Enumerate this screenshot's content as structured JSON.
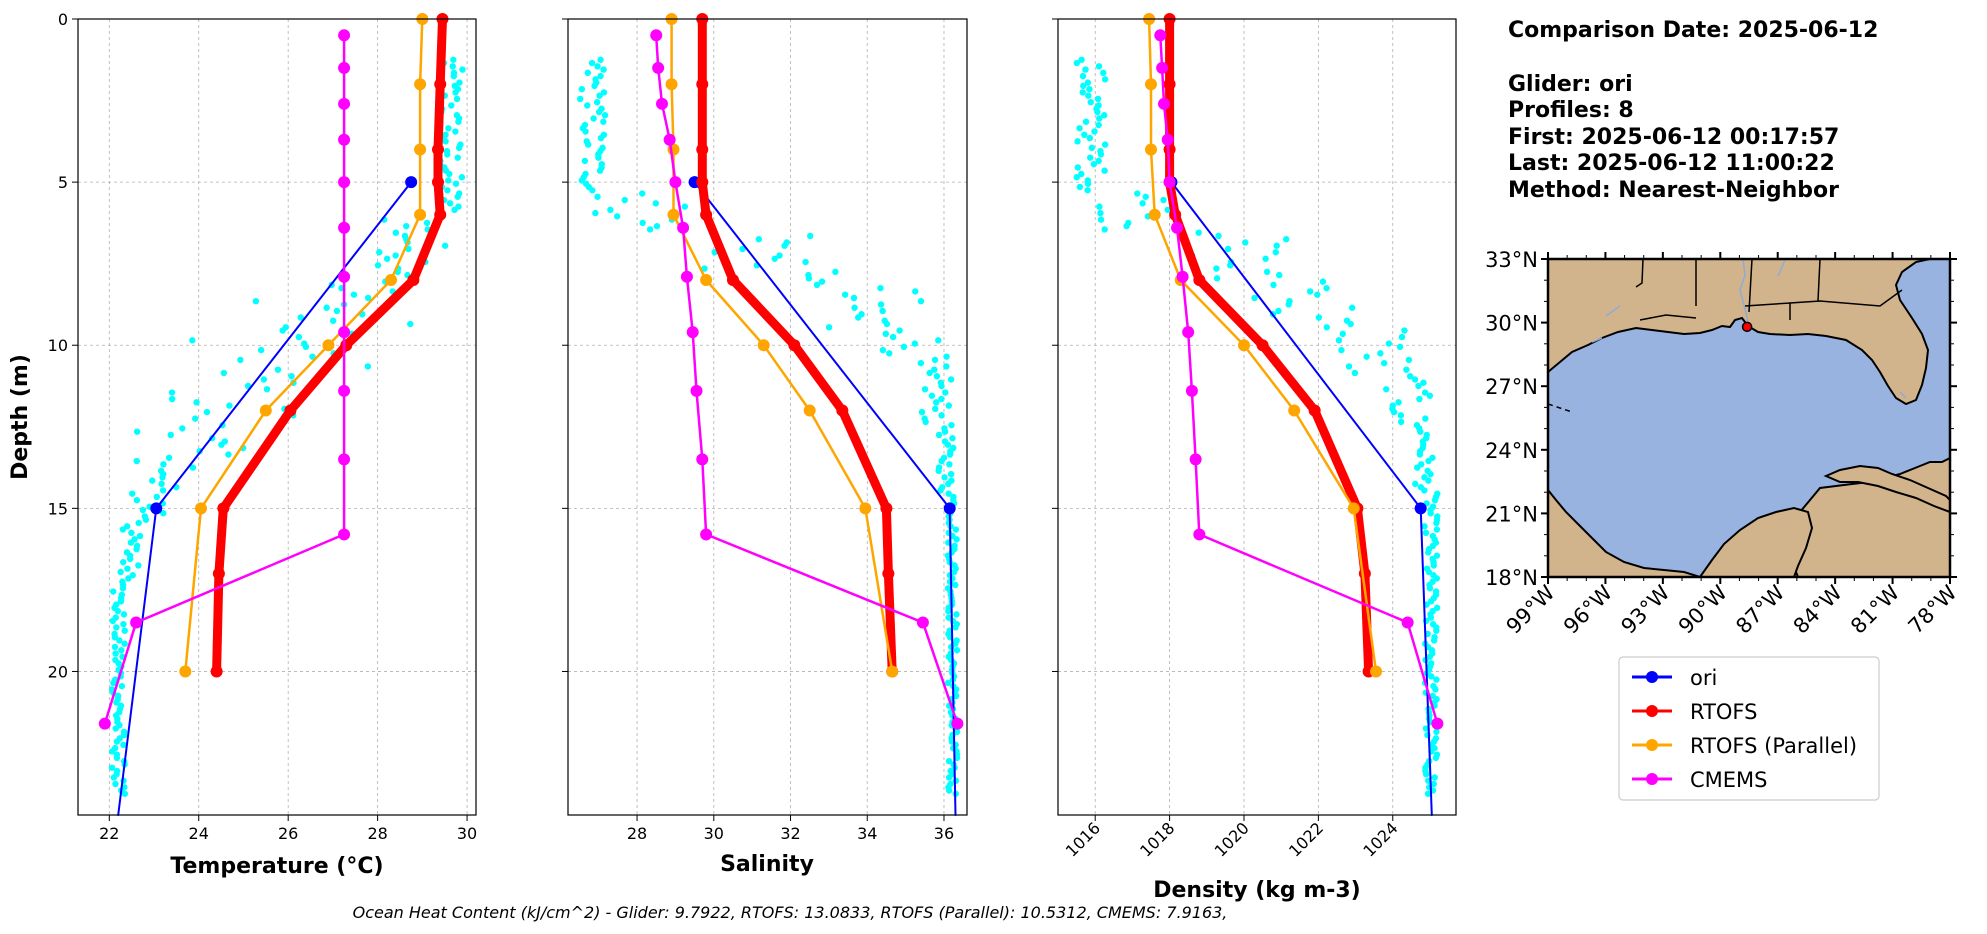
{
  "info": {
    "comparison_date": "Comparison Date: 2025-06-12",
    "glider": "Glider: ori",
    "profiles": "Profiles: 8",
    "first": "First: 2025-06-12 00:17:57",
    "last": "Last: 2025-06-12 11:00:22",
    "method": "Method: Nearest-Neighbor"
  },
  "footer": "Ocean Heat Content (kJ/cm^2) - Glider: 9.7922,  RTOFS: 13.0833,  RTOFS (Parallel): 10.5312,  CMEMS: 7.9163,",
  "colors": {
    "glider": "#0000ff",
    "rtofs": "#ff0000",
    "rtofs_parallel": "#ffa500",
    "cmems": "#ff00ff",
    "raw": "#00ffff",
    "land": "#d2b48c",
    "ocean": "#99b3e0",
    "grid": "#b0b0b0"
  },
  "legend": [
    {
      "name": "ori",
      "color": "#0000ff"
    },
    {
      "name": "RTOFS",
      "color": "#ff0000"
    },
    {
      "name": "RTOFS (Parallel)",
      "color": "#ffa500"
    },
    {
      "name": "CMEMS",
      "color": "#ff00ff"
    }
  ],
  "chart_data": [
    {
      "type": "line",
      "id": "temperature",
      "xlabel": "Temperature (°C)",
      "ylabel": "Depth (m)",
      "xlim": [
        21.3,
        30.2
      ],
      "ylim": [
        24.4,
        0
      ],
      "xticks": [
        22,
        24,
        26,
        28,
        30
      ],
      "yticks": [
        0,
        5,
        10,
        15,
        20
      ],
      "grid": true,
      "series": [
        {
          "name": "ori",
          "key": "glider",
          "width": 2,
          "marker_radius": 6,
          "markers": [
            [
              28.75,
              5
            ],
            [
              23.05,
              15
            ]
          ],
          "x": [
            28.75,
            23.05,
            22.2
          ],
          "depth": [
            5,
            15,
            24.4
          ]
        },
        {
          "name": "RTOFS",
          "key": "rtofs",
          "width": 9,
          "marker_radius": 6,
          "x": [
            29.45,
            29.4,
            29.35,
            29.35,
            29.4,
            28.8,
            27.3,
            26.05,
            24.55,
            24.45,
            24.4
          ],
          "depth": [
            0,
            2,
            4,
            5,
            6,
            8,
            10,
            12,
            15,
            17,
            20
          ]
        },
        {
          "name": "RTOFS (Parallel)",
          "key": "rtofs_parallel",
          "width": 2.5,
          "marker_radius": 6,
          "x": [
            29,
            28.95,
            28.95,
            28.95,
            28.3,
            26.9,
            25.5,
            24.05,
            23.7
          ],
          "depth": [
            0,
            2,
            4,
            6,
            8,
            10,
            12,
            15,
            20
          ]
        },
        {
          "name": "CMEMS",
          "key": "cmems",
          "width": 2.5,
          "marker_radius": 6,
          "x": [
            27.25,
            27.25,
            27.25,
            27.25,
            27.25,
            27.25,
            27.25,
            27.25,
            27.25,
            27.25,
            27.25,
            22.6,
            21.9
          ],
          "depth": [
            0.5,
            1.5,
            2.6,
            3.7,
            5.0,
            6.4,
            7.9,
            9.6,
            11.4,
            13.5,
            15.8,
            18.5,
            21.6
          ]
        }
      ],
      "scatter": {
        "name": "glider-raw",
        "key": "raw",
        "bands": [
          {
            "d0": 1.2,
            "d1": 6.0,
            "x0": 29.3,
            "x1": 29.9
          },
          {
            "d0": 6.0,
            "d1": 8.0,
            "x0": 28.0,
            "x1": 29.6
          },
          {
            "d0": 8.0,
            "d1": 9.5,
            "x0": 25.2,
            "x1": 28.9
          },
          {
            "d0": 9.5,
            "d1": 11.0,
            "x0": 23.8,
            "x1": 27.8
          },
          {
            "d0": 11.0,
            "d1": 12.5,
            "x0": 23.1,
            "x1": 26.6
          },
          {
            "d0": 12.5,
            "d1": 13.8,
            "x0": 22.6,
            "x1": 25.0
          },
          {
            "d0": 13.8,
            "d1": 15.5,
            "x0": 22.35,
            "x1": 23.6
          },
          {
            "d0": 15.5,
            "d1": 17.5,
            "x0": 22.25,
            "x1": 22.7
          },
          {
            "d0": 17.5,
            "d1": 23.8,
            "x0": 22.05,
            "x1": 22.35
          }
        ]
      }
    },
    {
      "type": "line",
      "id": "salinity",
      "xlabel": "Salinity",
      "xlim": [
        26.2,
        36.6
      ],
      "ylim": [
        24.4,
        0
      ],
      "xticks": [
        28,
        30,
        32,
        34,
        36
      ],
      "yticks": [
        0,
        5,
        10,
        15,
        20
      ],
      "grid": true,
      "series": [
        {
          "name": "ori",
          "key": "glider",
          "width": 2,
          "marker_radius": 6,
          "markers": [
            [
              29.5,
              5
            ],
            [
              36.15,
              15
            ]
          ],
          "x": [
            29.5,
            36.15,
            36.3
          ],
          "depth": [
            5,
            15,
            24.4
          ]
        },
        {
          "name": "RTOFS",
          "key": "rtofs",
          "width": 9,
          "marker_radius": 6,
          "x": [
            29.7,
            29.7,
            29.7,
            29.7,
            29.8,
            30.5,
            32.1,
            33.35,
            34.5,
            34.55,
            34.65
          ],
          "depth": [
            0,
            2,
            4,
            5,
            6,
            8,
            10,
            12,
            15,
            17,
            20
          ]
        },
        {
          "name": "RTOFS (Parallel)",
          "key": "rtofs_parallel",
          "width": 2.5,
          "marker_radius": 6,
          "x": [
            28.9,
            28.9,
            28.95,
            28.95,
            29.8,
            31.3,
            32.5,
            33.95,
            34.65
          ],
          "depth": [
            0,
            2,
            4,
            6,
            8,
            10,
            12,
            15,
            20
          ]
        },
        {
          "name": "CMEMS",
          "key": "cmems",
          "width": 2.5,
          "marker_radius": 6,
          "x": [
            28.5,
            28.55,
            28.65,
            28.85,
            29.0,
            29.2,
            29.3,
            29.45,
            29.55,
            29.7,
            29.8,
            35.45,
            36.35
          ],
          "depth": [
            0.5,
            1.5,
            2.6,
            3.7,
            5.0,
            6.4,
            7.9,
            9.6,
            11.4,
            13.5,
            15.8,
            18.5,
            21.6
          ]
        }
      ],
      "scatter": {
        "name": "glider-raw",
        "key": "raw",
        "bands": [
          {
            "d0": 1.2,
            "d1": 5.3,
            "x0": 26.5,
            "x1": 27.2
          },
          {
            "d0": 5.3,
            "d1": 6.5,
            "x0": 26.8,
            "x1": 29.5
          },
          {
            "d0": 6.5,
            "d1": 8.0,
            "x0": 29.6,
            "x1": 33.2
          },
          {
            "d0": 8.0,
            "d1": 9.5,
            "x0": 32.0,
            "x1": 35.5
          },
          {
            "d0": 9.5,
            "d1": 11.0,
            "x0": 34.4,
            "x1": 36.1
          },
          {
            "d0": 11.0,
            "d1": 12.5,
            "x0": 35.4,
            "x1": 36.2
          },
          {
            "d0": 12.5,
            "d1": 14.5,
            "x0": 35.85,
            "x1": 36.25
          },
          {
            "d0": 14.5,
            "d1": 23.8,
            "x0": 36.1,
            "x1": 36.35
          }
        ]
      }
    },
    {
      "type": "line",
      "id": "density",
      "xlabel": "Density (kg m-3)",
      "xlim": [
        1015.0,
        1025.7
      ],
      "ylim": [
        24.4,
        0
      ],
      "xticks": [
        1016,
        1018,
        1020,
        1022,
        1024
      ],
      "yticks": [
        0,
        5,
        10,
        15,
        20
      ],
      "grid": true,
      "series": [
        {
          "name": "ori",
          "key": "glider",
          "width": 2,
          "marker_radius": 6,
          "markers": [
            [
              1018.05,
              5
            ],
            [
              1024.75,
              15
            ]
          ],
          "x": [
            1018.05,
            1024.75,
            1025.05
          ],
          "depth": [
            5,
            15,
            24.4
          ]
        },
        {
          "name": "RTOFS",
          "key": "rtofs",
          "width": 9,
          "marker_radius": 6,
          "x": [
            1018.0,
            1018.0,
            1018.0,
            1018.0,
            1018.15,
            1018.8,
            1020.5,
            1021.9,
            1023.05,
            1023.25,
            1023.35
          ],
          "depth": [
            0,
            2,
            4,
            5,
            6,
            8,
            10,
            12,
            15,
            17,
            20
          ]
        },
        {
          "name": "RTOFS (Parallel)",
          "key": "rtofs_parallel",
          "width": 2.5,
          "marker_radius": 6,
          "x": [
            1017.45,
            1017.5,
            1017.5,
            1017.6,
            1018.3,
            1020.0,
            1021.35,
            1022.95,
            1023.55
          ],
          "depth": [
            0,
            2,
            4,
            6,
            8,
            10,
            12,
            15,
            20
          ]
        },
        {
          "name": "CMEMS",
          "key": "cmems",
          "width": 2.5,
          "marker_radius": 6,
          "x": [
            1017.75,
            1017.8,
            1017.85,
            1017.95,
            1018.0,
            1018.2,
            1018.35,
            1018.5,
            1018.6,
            1018.7,
            1018.8,
            1024.4,
            1025.2
          ],
          "depth": [
            0.5,
            1.5,
            2.6,
            3.7,
            5.0,
            6.4,
            7.9,
            9.6,
            11.4,
            13.5,
            15.8,
            18.5,
            21.6
          ]
        }
      ],
      "scatter": {
        "name": "glider-raw",
        "key": "raw",
        "bands": [
          {
            "d0": 1.2,
            "d1": 5.3,
            "x0": 1015.5,
            "x1": 1016.3
          },
          {
            "d0": 5.3,
            "d1": 6.5,
            "x0": 1016.1,
            "x1": 1018.3
          },
          {
            "d0": 6.5,
            "d1": 8.0,
            "x0": 1018.4,
            "x1": 1021.2
          },
          {
            "d0": 8.0,
            "d1": 9.5,
            "x0": 1020.2,
            "x1": 1023.4
          },
          {
            "d0": 9.5,
            "d1": 11.0,
            "x0": 1022.3,
            "x1": 1024.7
          },
          {
            "d0": 11.0,
            "d1": 12.5,
            "x0": 1023.8,
            "x1": 1025.0
          },
          {
            "d0": 12.5,
            "d1": 14.5,
            "x0": 1024.6,
            "x1": 1025.1
          },
          {
            "d0": 14.5,
            "d1": 23.8,
            "x0": 1024.85,
            "x1": 1025.2
          }
        ]
      }
    }
  ],
  "map": {
    "lon_range": [
      -99,
      -78
    ],
    "lat_range": [
      18,
      33
    ],
    "lat_labels": [
      "33°N",
      "30°N",
      "27°N",
      "24°N",
      "21°N",
      "18°N"
    ],
    "lon_labels": [
      "99°W",
      "96°W",
      "93°W",
      "90°W",
      "87°W",
      "84°W",
      "81°W",
      "78°W"
    ],
    "glider_location": {
      "lon": -88.6,
      "lat": 29.8
    }
  }
}
